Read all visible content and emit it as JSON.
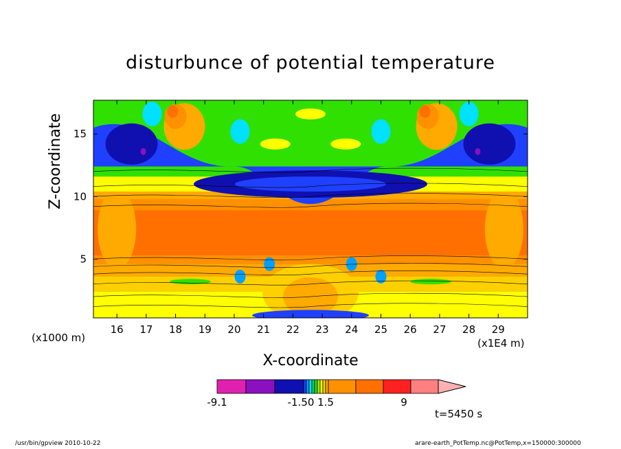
{
  "chart_data": {
    "type": "heatmap",
    "subtype": "filled-contour",
    "title": "disturbunce of potential temperature",
    "xlabel": "X-coordinate",
    "ylabel": "Z-coordinate",
    "x_unit": "(x1E4 m)",
    "y_unit": "(x1000 m)",
    "xlim": [
      15.2,
      30.0
    ],
    "ylim": [
      0.3,
      17.7
    ],
    "x_ticks": [
      "16",
      "17",
      "18",
      "19",
      "20",
      "21",
      "22",
      "23",
      "24",
      "25",
      "26",
      "27",
      "28",
      "29"
    ],
    "y_ticks": [
      "5",
      "10",
      "15"
    ],
    "colorbar": {
      "labels": [
        "-9.1",
        "-1.50",
        "1.5",
        "9"
      ],
      "bins": [
        {
          "from": -9.1,
          "to": -6.1,
          "color": "#e020b0"
        },
        {
          "from": -6.1,
          "to": -3.1,
          "color": "#8a10c0"
        },
        {
          "from": -3.1,
          "to": -1.5,
          "color": "#1010b0"
        },
        {
          "from": -1.5,
          "to": -1.2,
          "color": "#2040ff"
        },
        {
          "from": -1.2,
          "to": -0.9,
          "color": "#00a0ff"
        },
        {
          "from": -0.9,
          "to": -0.6,
          "color": "#00e0ff"
        },
        {
          "from": -0.6,
          "to": -0.3,
          "color": "#00d080"
        },
        {
          "from": -0.3,
          "to": 0.0,
          "color": "#30e000"
        },
        {
          "from": 0.0,
          "to": 0.3,
          "color": "#a0ee00"
        },
        {
          "from": 0.3,
          "to": 0.6,
          "color": "#ffff00"
        },
        {
          "from": 0.6,
          "to": 0.9,
          "color": "#ffd000"
        },
        {
          "from": 0.9,
          "to": 1.2,
          "color": "#ffaa00"
        },
        {
          "from": 1.2,
          "to": 1.5,
          "color": "#ff9000"
        },
        {
          "from": 1.5,
          "to": 4.5,
          "color": "#ff7000"
        },
        {
          "from": 4.5,
          "to": 7.5,
          "color": "#ff2020"
        },
        {
          "from": 7.5,
          "to": 9.0,
          "color": "#ff8080"
        },
        {
          "from": 9.0,
          "to": 12.0,
          "color": "#ffb0b0"
        }
      ]
    }
  },
  "time_label": "t=5450 s",
  "footer_left": "/usr/bin/gpview   2010-10-22",
  "footer_right": "arare-earth_PotTemp.nc@PotTemp,x=150000:300000"
}
